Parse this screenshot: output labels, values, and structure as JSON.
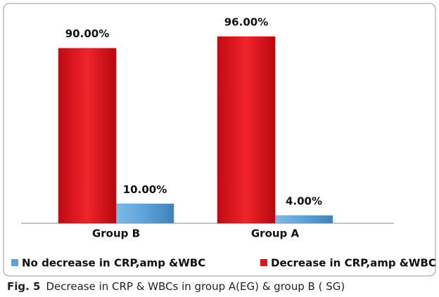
{
  "chart_data": {
    "type": "bar",
    "categories": [
      "Group B",
      "Group A"
    ],
    "series": [
      {
        "name": "No decrease in CRP,amp &WBC",
        "color": "#5ba3d9",
        "values": [
          10,
          4
        ],
        "value_labels": [
          "10.00%",
          "4.00%"
        ]
      },
      {
        "name": "Decrease in CRP,amp &WBC",
        "color": "#e0121b",
        "values": [
          90,
          96
        ],
        "value_labels": [
          "90.00%",
          "96.00%"
        ]
      }
    ],
    "caption": {
      "label": "Fig. 5",
      "text": "Decrease in CRP & WBCs in group A(EG) & group B ( SG)"
    }
  }
}
